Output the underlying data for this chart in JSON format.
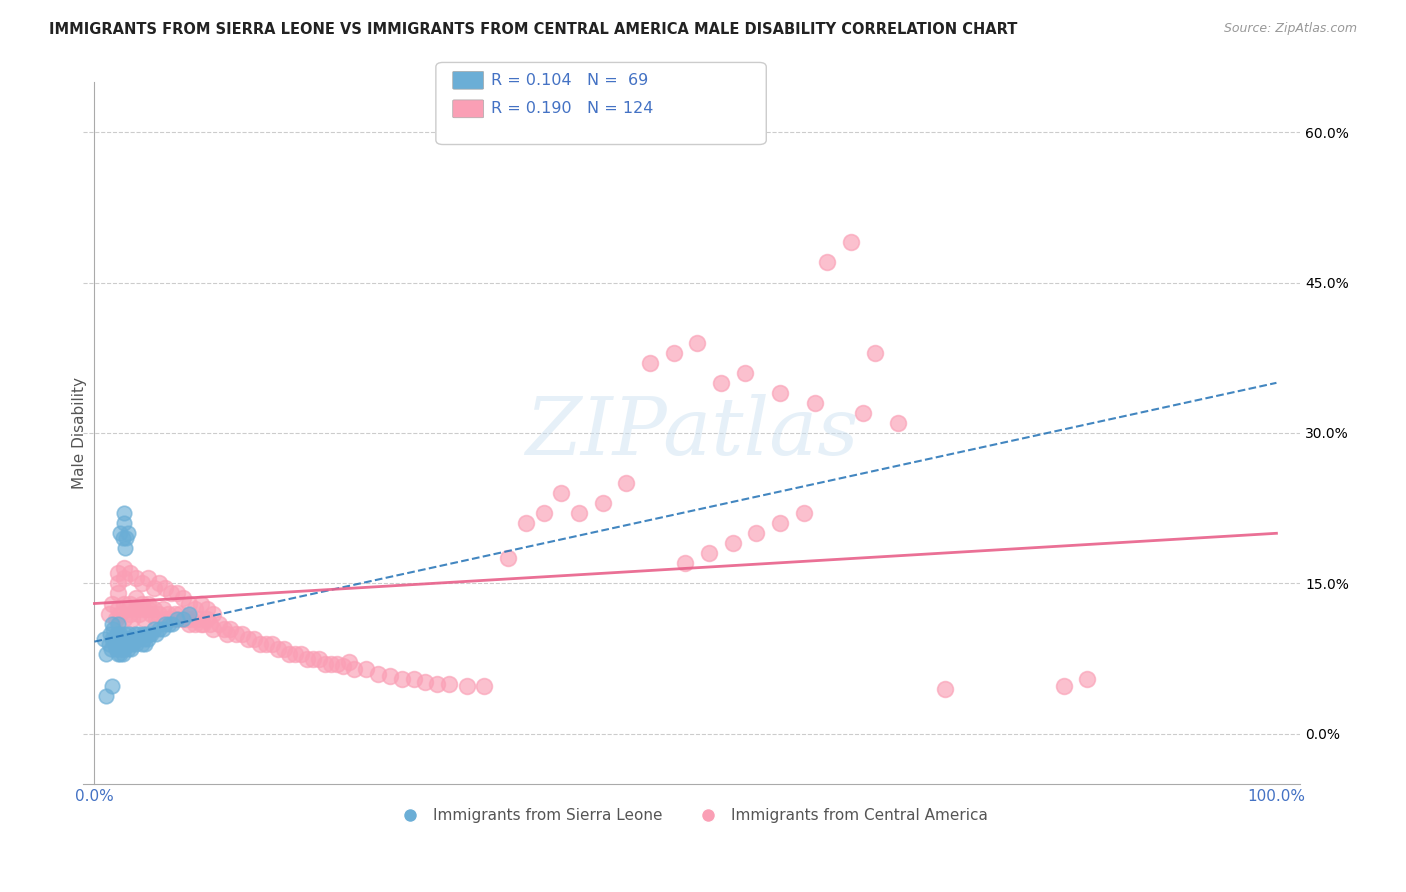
{
  "title": "IMMIGRANTS FROM SIERRA LEONE VS IMMIGRANTS FROM CENTRAL AMERICA MALE DISABILITY CORRELATION CHART",
  "source": "Source: ZipAtlas.com",
  "ylabel": "Male Disability",
  "ylim": [
    -0.05,
    0.65
  ],
  "yticks": [
    0.0,
    0.15,
    0.3,
    0.45,
    0.6
  ],
  "ytick_labels": [
    "0.0%",
    "15.0%",
    "30.0%",
    "45.0%",
    "60.0%"
  ],
  "xticks": [
    0.0,
    0.2,
    0.4,
    0.6,
    0.8,
    1.0
  ],
  "xtick_labels": [
    "0.0%",
    "",
    "",
    "",
    "",
    "100.0%"
  ],
  "sierra_leone_color": "#6baed6",
  "central_america_color": "#fa9fb5",
  "sierra_leone_R": 0.104,
  "sierra_leone_N": 69,
  "central_america_R": 0.19,
  "central_america_N": 124,
  "trend_sierra_leone_color": "#2171b5",
  "trend_central_america_color": "#e8608a",
  "background_color": "#ffffff",
  "watermark": "ZIPatlas",
  "sl_x": [
    0.008,
    0.01,
    0.012,
    0.013,
    0.014,
    0.015,
    0.015,
    0.016,
    0.017,
    0.018,
    0.018,
    0.019,
    0.02,
    0.02,
    0.02,
    0.02,
    0.021,
    0.021,
    0.022,
    0.022,
    0.022,
    0.023,
    0.023,
    0.024,
    0.024,
    0.025,
    0.025,
    0.026,
    0.027,
    0.028,
    0.028,
    0.029,
    0.03,
    0.03,
    0.031,
    0.032,
    0.033,
    0.034,
    0.035,
    0.036,
    0.037,
    0.038,
    0.04,
    0.041,
    0.042,
    0.043,
    0.044,
    0.045,
    0.046,
    0.048,
    0.05,
    0.052,
    0.055,
    0.058,
    0.06,
    0.063,
    0.066,
    0.07,
    0.075,
    0.08,
    0.022,
    0.024,
    0.025,
    0.025,
    0.026,
    0.027,
    0.028,
    0.015,
    0.01
  ],
  "sl_y": [
    0.095,
    0.08,
    0.09,
    0.1,
    0.085,
    0.095,
    0.11,
    0.105,
    0.09,
    0.085,
    0.095,
    0.1,
    0.08,
    0.09,
    0.1,
    0.11,
    0.085,
    0.095,
    0.08,
    0.09,
    0.1,
    0.085,
    0.095,
    0.08,
    0.09,
    0.085,
    0.095,
    0.1,
    0.09,
    0.085,
    0.095,
    0.1,
    0.09,
    0.095,
    0.085,
    0.09,
    0.095,
    0.1,
    0.09,
    0.095,
    0.1,
    0.095,
    0.09,
    0.1,
    0.095,
    0.09,
    0.1,
    0.095,
    0.1,
    0.1,
    0.105,
    0.1,
    0.105,
    0.105,
    0.11,
    0.11,
    0.11,
    0.115,
    0.115,
    0.12,
    0.2,
    0.195,
    0.21,
    0.22,
    0.185,
    0.195,
    0.2,
    0.048,
    0.038
  ],
  "ca_x": [
    0.012,
    0.015,
    0.018,
    0.02,
    0.02,
    0.022,
    0.025,
    0.025,
    0.028,
    0.03,
    0.03,
    0.032,
    0.035,
    0.035,
    0.038,
    0.04,
    0.04,
    0.042,
    0.045,
    0.045,
    0.048,
    0.05,
    0.052,
    0.055,
    0.058,
    0.06,
    0.062,
    0.065,
    0.068,
    0.07,
    0.072,
    0.075,
    0.078,
    0.08,
    0.082,
    0.085,
    0.088,
    0.09,
    0.092,
    0.095,
    0.098,
    0.1,
    0.105,
    0.11,
    0.112,
    0.115,
    0.12,
    0.125,
    0.13,
    0.135,
    0.14,
    0.145,
    0.15,
    0.155,
    0.16,
    0.165,
    0.17,
    0.175,
    0.18,
    0.185,
    0.19,
    0.195,
    0.2,
    0.205,
    0.21,
    0.215,
    0.22,
    0.23,
    0.24,
    0.25,
    0.26,
    0.27,
    0.28,
    0.29,
    0.3,
    0.315,
    0.33,
    0.35,
    0.365,
    0.38,
    0.395,
    0.41,
    0.43,
    0.45,
    0.47,
    0.49,
    0.51,
    0.53,
    0.55,
    0.58,
    0.61,
    0.65,
    0.68,
    0.02,
    0.025,
    0.03,
    0.035,
    0.04,
    0.045,
    0.05,
    0.055,
    0.06,
    0.065,
    0.07,
    0.075,
    0.08,
    0.085,
    0.09,
    0.095,
    0.1,
    0.5,
    0.52,
    0.54,
    0.56,
    0.58,
    0.6,
    0.62,
    0.64,
    0.66,
    0.82,
    0.84,
    0.72,
    0.02,
    0.025
  ],
  "ca_y": [
    0.12,
    0.13,
    0.115,
    0.125,
    0.14,
    0.12,
    0.13,
    0.115,
    0.125,
    0.12,
    0.13,
    0.115,
    0.125,
    0.135,
    0.12,
    0.125,
    0.13,
    0.115,
    0.125,
    0.13,
    0.12,
    0.125,
    0.115,
    0.12,
    0.125,
    0.115,
    0.12,
    0.115,
    0.12,
    0.115,
    0.12,
    0.115,
    0.115,
    0.11,
    0.115,
    0.11,
    0.115,
    0.11,
    0.11,
    0.115,
    0.11,
    0.105,
    0.11,
    0.105,
    0.1,
    0.105,
    0.1,
    0.1,
    0.095,
    0.095,
    0.09,
    0.09,
    0.09,
    0.085,
    0.085,
    0.08,
    0.08,
    0.08,
    0.075,
    0.075,
    0.075,
    0.07,
    0.07,
    0.07,
    0.068,
    0.072,
    0.065,
    0.065,
    0.06,
    0.058,
    0.055,
    0.055,
    0.052,
    0.05,
    0.05,
    0.048,
    0.048,
    0.175,
    0.21,
    0.22,
    0.24,
    0.22,
    0.23,
    0.25,
    0.37,
    0.38,
    0.39,
    0.35,
    0.36,
    0.34,
    0.33,
    0.32,
    0.31,
    0.15,
    0.155,
    0.16,
    0.155,
    0.15,
    0.155,
    0.145,
    0.15,
    0.145,
    0.14,
    0.14,
    0.135,
    0.13,
    0.125,
    0.13,
    0.125,
    0.12,
    0.17,
    0.18,
    0.19,
    0.2,
    0.21,
    0.22,
    0.47,
    0.49,
    0.38,
    0.048,
    0.055,
    0.045,
    0.16,
    0.165
  ]
}
